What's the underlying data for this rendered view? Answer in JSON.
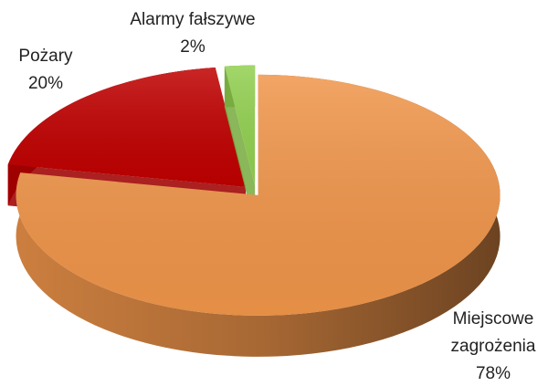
{
  "chart_data": {
    "type": "pie3d",
    "categories": [
      "Miejscowe zagrożenia",
      "Pożary",
      "Alarmy fałszywe"
    ],
    "values": [
      78,
      20,
      2
    ],
    "value_labels": [
      "78%",
      "20%",
      "2%"
    ],
    "colors": [
      "#f0954a",
      "#c00000",
      "#92d050"
    ]
  }
}
